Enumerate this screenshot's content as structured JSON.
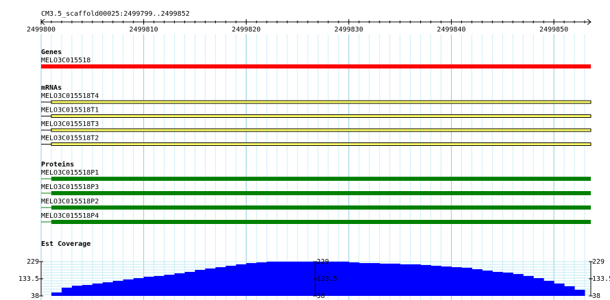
{
  "ruler": {
    "label": "CM3.5_scaffold00025:2499799..2499852",
    "xlim": [
      2499800,
      2499853.6
    ],
    "xticks": [
      2499800,
      2499810,
      2499820,
      2499830,
      2499840,
      2499850
    ]
  },
  "tracks": [
    {
      "title": "Genes",
      "color": "#ff0000",
      "features": [
        {
          "name": "MELO3C015518",
          "start": 2499800,
          "thick_start": 2499800,
          "end": 2499853.6
        }
      ]
    },
    {
      "title": "mRNAs",
      "color": "#ffff66",
      "features": [
        {
          "name": "MELO3C015518T4",
          "start": 2499800,
          "thick_start": 2499801,
          "end": 2499853.6
        },
        {
          "name": "MELO3C015518T1",
          "start": 2499800,
          "thick_start": 2499801,
          "end": 2499853.6
        },
        {
          "name": "MELO3C015518T3",
          "start": 2499800,
          "thick_start": 2499801,
          "end": 2499853.6
        },
        {
          "name": "MELO3C015518T2",
          "start": 2499800,
          "thick_start": 2499801,
          "end": 2499853.6
        }
      ]
    },
    {
      "title": "Proteins",
      "color": "#008000",
      "features": [
        {
          "name": "MELO3C015518P1",
          "start": 2499800,
          "thick_start": 2499801,
          "end": 2499853.6
        },
        {
          "name": "MELO3C015518P3",
          "start": 2499800,
          "thick_start": 2499801,
          "end": 2499853.6
        },
        {
          "name": "MELO3C015518P2",
          "start": 2499800,
          "thick_start": 2499801,
          "end": 2499853.6
        },
        {
          "name": "MELO3C015518P4",
          "start": 2499800,
          "thick_start": 2499801,
          "end": 2499853.6
        }
      ]
    }
  ],
  "coverage": {
    "title": "Est Coverage",
    "color": "#0000ff",
    "xlim": [
      2499801,
      2499853
    ],
    "ylim": [
      38,
      229
    ],
    "yticks": [
      38,
      133.5,
      229
    ],
    "values": [
      57,
      84,
      95,
      99,
      107,
      114,
      122,
      130,
      137,
      145,
      149,
      156,
      164,
      172,
      183,
      191,
      198,
      206,
      214,
      221,
      225,
      229,
      229,
      229,
      229,
      229,
      229,
      229,
      229,
      225,
      221,
      221,
      218,
      218,
      214,
      214,
      210,
      206,
      202,
      198,
      195,
      187,
      179,
      172,
      168,
      160,
      149,
      137,
      122,
      107,
      92,
      72
    ]
  }
}
